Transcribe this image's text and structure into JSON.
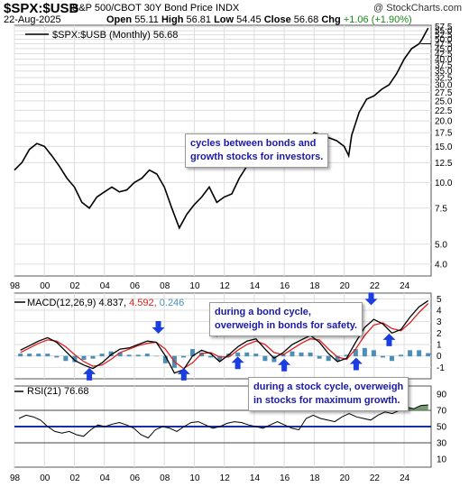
{
  "header": {
    "ticker": "$SPX:$USB",
    "subtitle": "S&P 500/CBOT 30Y Bond Price  INDX",
    "brand": "@ StockCharts.com",
    "date": "22-Aug-2025",
    "open_label": "Open",
    "open": "55.11",
    "high_label": "High",
    "high": "56.81",
    "low_label": "Low",
    "low": "54.45",
    "close_label": "Close",
    "close": "56.68",
    "chg_label": "Chg",
    "chg": "+1.06 (+1.90%)"
  },
  "annotations": {
    "bonds_to_stocks": "cycles between bonds and\ngrowth stocks for investors.",
    "bond_cycle": "during a bond cycle,\noverweigh in bonds for safety.",
    "stock_cycle": "during a stock cycle, overweigh\nin stocks for maximum growth."
  },
  "colors": {
    "price_line": "#000000",
    "macd_line": "#000000",
    "signal_line": "#e02020",
    "histogram": "#4a8fb8",
    "arrow": "#1a3ee0",
    "annotation_text": "#1a1aa8",
    "rsi_ref_line": "#1a2ea8",
    "rsi_overbought_fill": "#5c8a5c",
    "grid": "#dddddd"
  },
  "chart_data": [
    {
      "type": "line",
      "title": "$SPX:$USB (Monthly) 56.68",
      "y_scale": "log",
      "ylim": [
        3.5,
        58.5
      ],
      "y_ticks": [
        "57.5",
        "55.0",
        "52.5",
        "50.0",
        "47.5",
        "45.0",
        "42.5",
        "40.0",
        "37.5",
        "35.0",
        "32.5",
        "30.0",
        "27.5",
        "25.0",
        "22.5",
        "20.0",
        "17.5",
        "15.0",
        "12.5",
        "10.0",
        "7.5",
        "5.0",
        "4.0"
      ],
      "x_ticks": [
        "98",
        "00",
        "02",
        "04",
        "06",
        "08",
        "10",
        "12",
        "14",
        "16",
        "18",
        "20",
        "22",
        "24"
      ],
      "x": [
        1998.0,
        1998.5,
        1999.0,
        1999.5,
        2000.0,
        2000.5,
        2001.0,
        2001.5,
        2002.0,
        2002.5,
        2003.0,
        2003.5,
        2004.0,
        2004.5,
        2005.0,
        2005.5,
        2006.0,
        2006.5,
        2007.0,
        2007.5,
        2008.0,
        2008.5,
        2009.0,
        2009.5,
        2010.0,
        2010.5,
        2011.0,
        2011.5,
        2012.0,
        2012.5,
        2013.0,
        2013.5,
        2014.0,
        2014.5,
        2015.0,
        2015.5,
        2016.0,
        2016.5,
        2017.0,
        2017.5,
        2018.0,
        2018.5,
        2019.0,
        2019.5,
        2020.0,
        2020.3,
        2020.5,
        2021.0,
        2021.5,
        2022.0,
        2022.5,
        2023.0,
        2023.5,
        2024.0,
        2024.5,
        2025.0,
        2025.2,
        2025.6
      ],
      "values": [
        11.5,
        12.5,
        14.5,
        15.5,
        15.0,
        13.5,
        12.0,
        10.5,
        9.5,
        8.0,
        7.5,
        8.5,
        9.0,
        9.5,
        9.0,
        9.2,
        10.0,
        10.5,
        11.5,
        11.0,
        9.5,
        7.5,
        6.0,
        7.0,
        7.8,
        8.5,
        9.5,
        8.0,
        8.5,
        8.8,
        10.5,
        12.0,
        13.5,
        15.0,
        14.0,
        13.5,
        12.8,
        13.5,
        15.5,
        16.0,
        17.5,
        17.0,
        16.5,
        16.0,
        15.0,
        13.5,
        17.0,
        22.0,
        25.5,
        26.5,
        28.5,
        30.0,
        34.0,
        40.0,
        45.0,
        47.5,
        50.0,
        56.68
      ],
      "reference_level": 47.5
    },
    {
      "type": "line",
      "title": "MACD(12,26,9) 4.837, 4.592, 0.246",
      "ylim": [
        -2,
        5.5
      ],
      "y_ticks": [
        "5",
        "4",
        "3",
        "2",
        "1",
        "0",
        "-1"
      ],
      "series": [
        {
          "name": "MACD(12,26,9) 4.837",
          "values": [
            0.5,
            0.9,
            1.3,
            1.6,
            1.2,
            0.4,
            -0.4,
            -0.8,
            -1.1,
            -0.6,
            0.1,
            0.6,
            0.7,
            1.0,
            1.3,
            1.2,
            0.0,
            -1.5,
            -1.2,
            0.0,
            0.5,
            0.2,
            -0.5,
            0.1,
            0.8,
            1.3,
            1.5,
            0.6,
            -0.2,
            0.3,
            1.0,
            1.4,
            1.8,
            1.2,
            0.2,
            -0.5,
            -0.2,
            1.2,
            2.5,
            3.2,
            2.8,
            2.0,
            2.3,
            3.4,
            4.3,
            4.837
          ]
        },
        {
          "name": "4.592",
          "values": [
            0.3,
            0.7,
            1.1,
            1.4,
            1.3,
            0.8,
            0.1,
            -0.5,
            -0.9,
            -0.8,
            -0.3,
            0.3,
            0.6,
            0.9,
            1.1,
            1.2,
            0.6,
            -0.5,
            -1.1,
            -0.6,
            0.2,
            0.3,
            -0.1,
            -0.1,
            0.5,
            1.0,
            1.3,
            1.0,
            0.3,
            0.1,
            0.6,
            1.1,
            1.5,
            1.4,
            0.6,
            -0.1,
            -0.3,
            0.6,
            1.8,
            2.7,
            2.9,
            2.4,
            2.2,
            2.9,
            3.8,
            4.592
          ]
        },
        {
          "name": "0.246",
          "values": [
            0.2,
            0.2,
            0.2,
            0.2,
            -0.1,
            -0.4,
            -0.5,
            -0.3,
            -0.2,
            0.2,
            0.4,
            0.3,
            0.1,
            0.1,
            0.2,
            0.0,
            -0.6,
            -1.0,
            -0.1,
            0.6,
            0.3,
            -0.1,
            -0.4,
            0.2,
            0.3,
            0.3,
            0.2,
            -0.4,
            -0.5,
            0.2,
            0.4,
            0.3,
            0.3,
            -0.2,
            -0.4,
            -0.4,
            0.1,
            0.6,
            0.7,
            0.5,
            -0.1,
            -0.4,
            0.1,
            0.5,
            0.5,
            0.246
          ]
        }
      ]
    },
    {
      "type": "line",
      "title": "RSI(21) 76.68",
      "ylim": [
        0,
        100
      ],
      "y_ticks": [
        "90",
        "70",
        "50",
        "30",
        "10"
      ],
      "reference_levels": [
        70,
        50,
        30
      ],
      "x_ticks": [
        "98",
        "00",
        "02",
        "04",
        "06",
        "08",
        "10",
        "12",
        "14",
        "16",
        "18",
        "20",
        "22",
        "24"
      ],
      "series": [
        {
          "name": "RSI(21) 76.68",
          "values": [
            60,
            64,
            62,
            58,
            50,
            44,
            42,
            44,
            40,
            38,
            46,
            52,
            50,
            53,
            55,
            52,
            48,
            40,
            36,
            46,
            50,
            48,
            44,
            50,
            55,
            56,
            52,
            48,
            50,
            54,
            56,
            55,
            52,
            50,
            48,
            52,
            56,
            52,
            48,
            46,
            60,
            64,
            60,
            58,
            56,
            62,
            66,
            62,
            60,
            58,
            64,
            68,
            66,
            70,
            74,
            72,
            76,
            76.68
          ]
        }
      ]
    }
  ]
}
